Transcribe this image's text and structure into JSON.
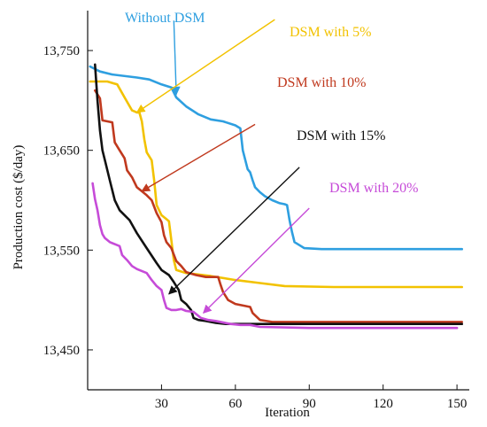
{
  "chart_data": {
    "type": "line",
    "xlabel": "Iteration",
    "ylabel": "Production cost ($/day)",
    "xlim": [
      0,
      155
    ],
    "ylim": [
      13410,
      13790
    ],
    "xticks": [
      30,
      60,
      90,
      120,
      150
    ],
    "xtick_labels": [
      "30",
      "60",
      "90",
      "120",
      "150"
    ],
    "yticks": [
      13450,
      13550,
      13650,
      13750
    ],
    "ytick_labels": [
      "13,450",
      "13,550",
      "13,650",
      "13,750"
    ],
    "grid": false,
    "series": [
      {
        "name": "Without DSM",
        "color": "#2e9fe0",
        "points": [
          [
            1,
            13734
          ],
          [
            5,
            13729
          ],
          [
            10,
            13726
          ],
          [
            20,
            13723
          ],
          [
            25,
            13721
          ],
          [
            30,
            13716
          ],
          [
            34,
            13713
          ],
          [
            36,
            13703
          ],
          [
            40,
            13694
          ],
          [
            45,
            13686
          ],
          [
            50,
            13681
          ],
          [
            55,
            13679
          ],
          [
            60,
            13675
          ],
          [
            62,
            13672
          ],
          [
            63,
            13650
          ],
          [
            65,
            13631
          ],
          [
            66,
            13628
          ],
          [
            67,
            13620
          ],
          [
            68,
            13613
          ],
          [
            70,
            13608
          ],
          [
            72,
            13604
          ],
          [
            75,
            13600
          ],
          [
            78,
            13597
          ],
          [
            80,
            13596
          ],
          [
            81,
            13595
          ],
          [
            82,
            13580
          ],
          [
            83,
            13568
          ],
          [
            84,
            13558
          ],
          [
            86,
            13555
          ],
          [
            88,
            13552
          ],
          [
            95,
            13551
          ],
          [
            110,
            13551
          ],
          [
            130,
            13551
          ],
          [
            152,
            13551
          ]
        ]
      },
      {
        "name": "DSM with 5%",
        "color": "#f2c200",
        "points": [
          [
            1,
            13719
          ],
          [
            8,
            13719
          ],
          [
            12,
            13716
          ],
          [
            15,
            13703
          ],
          [
            18,
            13690
          ],
          [
            20,
            13688
          ],
          [
            21,
            13688
          ],
          [
            22,
            13679
          ],
          [
            23,
            13661
          ],
          [
            24,
            13648
          ],
          [
            26,
            13640
          ],
          [
            27,
            13620
          ],
          [
            28,
            13595
          ],
          [
            30,
            13585
          ],
          [
            32,
            13581
          ],
          [
            33,
            13579
          ],
          [
            34,
            13560
          ],
          [
            35,
            13540
          ],
          [
            36,
            13530
          ],
          [
            40,
            13527
          ],
          [
            50,
            13524
          ],
          [
            60,
            13520
          ],
          [
            70,
            13517
          ],
          [
            80,
            13514
          ],
          [
            100,
            13513
          ],
          [
            130,
            13513
          ],
          [
            152,
            13513
          ]
        ]
      },
      {
        "name": "DSM with 10%",
        "color": "#c0391e",
        "points": [
          [
            3,
            13710
          ],
          [
            5,
            13702
          ],
          [
            6,
            13680
          ],
          [
            10,
            13678
          ],
          [
            11,
            13658
          ],
          [
            13,
            13650
          ],
          [
            15,
            13642
          ],
          [
            16,
            13630
          ],
          [
            18,
            13623
          ],
          [
            20,
            13613
          ],
          [
            22,
            13609
          ],
          [
            24,
            13605
          ],
          [
            26,
            13600
          ],
          [
            28,
            13587
          ],
          [
            30,
            13578
          ],
          [
            31,
            13565
          ],
          [
            32,
            13558
          ],
          [
            34,
            13552
          ],
          [
            36,
            13539
          ],
          [
            38,
            13534
          ],
          [
            40,
            13528
          ],
          [
            44,
            13525
          ],
          [
            48,
            13523
          ],
          [
            53,
            13523
          ],
          [
            54,
            13515
          ],
          [
            55,
            13508
          ],
          [
            57,
            13500
          ],
          [
            60,
            13496
          ],
          [
            64,
            13494
          ],
          [
            66,
            13493
          ],
          [
            67,
            13487
          ],
          [
            70,
            13480
          ],
          [
            75,
            13478
          ],
          [
            90,
            13478
          ],
          [
            152,
            13478
          ]
        ]
      },
      {
        "name": "DSM with 15%",
        "color": "#111111",
        "points": [
          [
            3,
            13736
          ],
          [
            4,
            13700
          ],
          [
            5,
            13670
          ],
          [
            6,
            13650
          ],
          [
            7,
            13640
          ],
          [
            9,
            13620
          ],
          [
            11,
            13600
          ],
          [
            13,
            13590
          ],
          [
            15,
            13585
          ],
          [
            17,
            13580
          ],
          [
            20,
            13567
          ],
          [
            24,
            13552
          ],
          [
            28,
            13537
          ],
          [
            30,
            13530
          ],
          [
            33,
            13525
          ],
          [
            35,
            13518
          ],
          [
            37,
            13510
          ],
          [
            38,
            13500
          ],
          [
            40,
            13496
          ],
          [
            42,
            13490
          ],
          [
            43,
            13482
          ],
          [
            45,
            13480
          ],
          [
            48,
            13479
          ],
          [
            52,
            13477
          ],
          [
            56,
            13476
          ],
          [
            60,
            13476
          ],
          [
            90,
            13476
          ],
          [
            152,
            13476
          ]
        ]
      },
      {
        "name": "DSM with 20%",
        "color": "#c64bd8",
        "points": [
          [
            2,
            13617
          ],
          [
            3,
            13601
          ],
          [
            4,
            13590
          ],
          [
            5,
            13575
          ],
          [
            6,
            13566
          ],
          [
            7,
            13562
          ],
          [
            9,
            13558
          ],
          [
            11,
            13556
          ],
          [
            13,
            13554
          ],
          [
            14,
            13545
          ],
          [
            16,
            13540
          ],
          [
            18,
            13534
          ],
          [
            20,
            13531
          ],
          [
            24,
            13527
          ],
          [
            26,
            13520
          ],
          [
            28,
            13514
          ],
          [
            30,
            13510
          ],
          [
            31,
            13500
          ],
          [
            32,
            13492
          ],
          [
            34,
            13490
          ],
          [
            36,
            13490
          ],
          [
            38,
            13491
          ],
          [
            40,
            13489
          ],
          [
            43,
            13488
          ],
          [
            46,
            13482
          ],
          [
            49,
            13480
          ],
          [
            52,
            13479
          ],
          [
            58,
            13476
          ],
          [
            62,
            13475
          ],
          [
            66,
            13475
          ],
          [
            70,
            13473
          ],
          [
            90,
            13472
          ],
          [
            120,
            13472
          ],
          [
            150,
            13472
          ]
        ]
      }
    ],
    "annotations": [
      {
        "text": "Without DSM",
        "series": 0,
        "target": [
          36,
          13706
        ],
        "from": [
          35,
          13780
        ]
      },
      {
        "text": "DSM with 5%",
        "series": 1,
        "target": [
          20,
          13688
        ],
        "from": [
          76,
          13781
        ]
      },
      {
        "text": "DSM with 10%",
        "series": 2,
        "target": [
          22,
          13609
        ],
        "from": [
          68,
          13676
        ]
      },
      {
        "text": "DSM with 15%",
        "series": 3,
        "target": [
          33,
          13506
        ],
        "from": [
          86,
          13633
        ]
      },
      {
        "text": "DSM with 20%",
        "series": 4,
        "target": [
          47,
          13487
        ],
        "from": [
          90,
          13592
        ]
      }
    ]
  }
}
